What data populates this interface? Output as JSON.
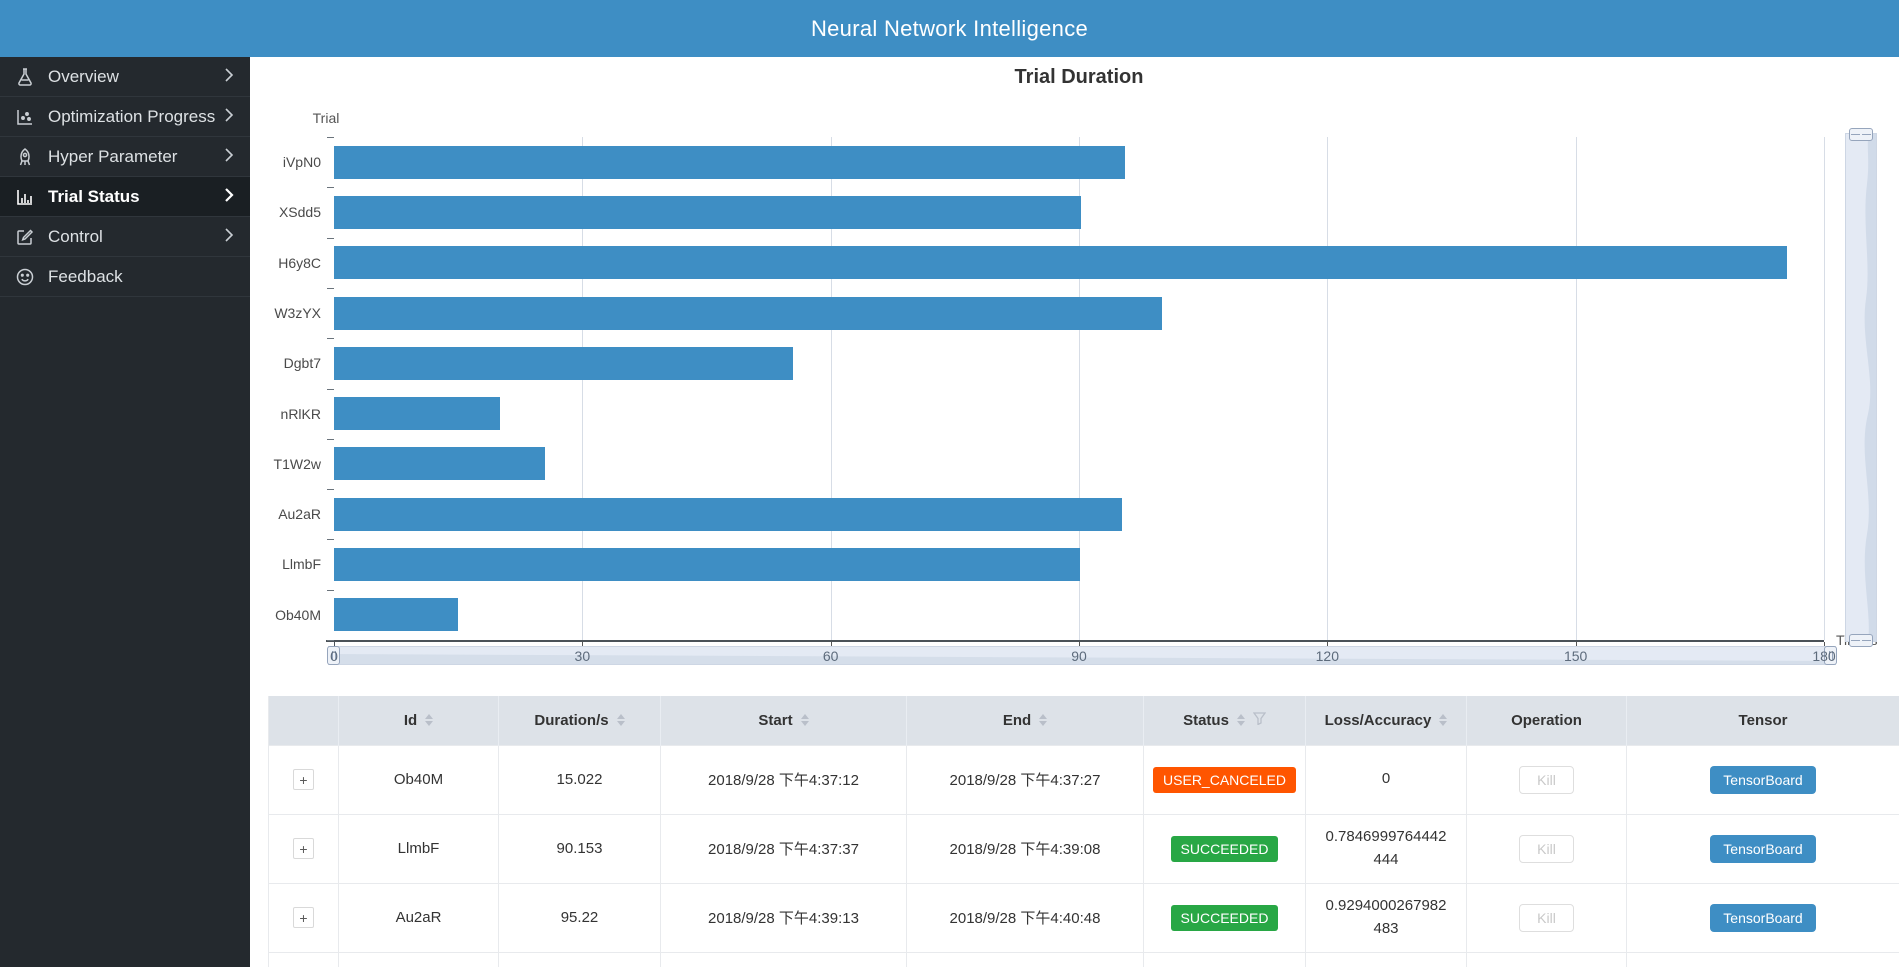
{
  "header": {
    "title": "Neural Network Intelligence"
  },
  "sidebar": {
    "items": [
      {
        "label": "Overview",
        "icon": "flask-icon",
        "chevron": true,
        "active": false
      },
      {
        "label": "Optimization Progress",
        "icon": "scatter-chart-icon",
        "chevron": true,
        "active": false
      },
      {
        "label": "Hyper Parameter",
        "icon": "rocket-icon",
        "chevron": true,
        "active": false
      },
      {
        "label": "Trial Status",
        "icon": "bar-chart-icon",
        "chevron": true,
        "active": true
      },
      {
        "label": "Control",
        "icon": "edit-icon",
        "chevron": true,
        "active": false
      },
      {
        "label": "Feedback",
        "icon": "smiley-icon",
        "chevron": false,
        "active": false
      }
    ]
  },
  "chart_data": {
    "type": "bar",
    "title": "Trial Duration",
    "ylabel": "Trial",
    "xlabel": "Time/s",
    "categories": [
      "iVpN0",
      "XSdd5",
      "H6y8C",
      "W3zYX",
      "Dgbt7",
      "nRlKR",
      "T1W2w",
      "Au2aR",
      "LlmbF",
      "Ob40M"
    ],
    "values": [
      95.5,
      90.2,
      175.5,
      100,
      55.5,
      20,
      25.5,
      95.22,
      90.153,
      15.022
    ],
    "xlim": [
      0,
      180
    ],
    "xticks": [
      0,
      30,
      60,
      90,
      120,
      150,
      180
    ],
    "bar_color": "#3e8ec4",
    "grid": true,
    "legend": "none",
    "datazoom": {
      "horizontal": true,
      "vertical": true
    }
  },
  "table": {
    "columns": [
      {
        "label": "",
        "sortable": false,
        "filter": false
      },
      {
        "label": "Id",
        "sortable": true,
        "filter": false
      },
      {
        "label": "Duration/s",
        "sortable": true,
        "filter": false
      },
      {
        "label": "Start",
        "sortable": true,
        "filter": false
      },
      {
        "label": "End",
        "sortable": true,
        "filter": false
      },
      {
        "label": "Status",
        "sortable": true,
        "filter": true
      },
      {
        "label": "Loss/Accuracy",
        "sortable": true,
        "filter": false
      },
      {
        "label": "Operation",
        "sortable": false,
        "filter": false
      },
      {
        "label": "Tensor",
        "sortable": false,
        "filter": false
      }
    ],
    "expand_label": "+",
    "kill_label": "Kill",
    "tensorboard_label": "TensorBoard",
    "rows": [
      {
        "id": "Ob40M",
        "duration": "15.022",
        "start": "2018/9/28 下午4:37:12",
        "end": "2018/9/28 下午4:37:27",
        "status": "USER_CANCELED",
        "loss": "0"
      },
      {
        "id": "LlmbF",
        "duration": "90.153",
        "start": "2018/9/28 下午4:37:37",
        "end": "2018/9/28 下午4:39:08",
        "status": "SUCCEEDED",
        "loss": "0.7846999764442444"
      },
      {
        "id": "Au2aR",
        "duration": "95.22",
        "start": "2018/9/28 下午4:39:13",
        "end": "2018/9/28 下午4:40:48",
        "status": "SUCCEEDED",
        "loss": "0.9294000267982483"
      }
    ]
  },
  "colors": {
    "header": "#3e8ec4",
    "bar": "#3e8ec4",
    "status_user_canceled": "#ff5500",
    "status_succeeded": "#28a745",
    "tensorboard_button": "#3e8ec4"
  }
}
